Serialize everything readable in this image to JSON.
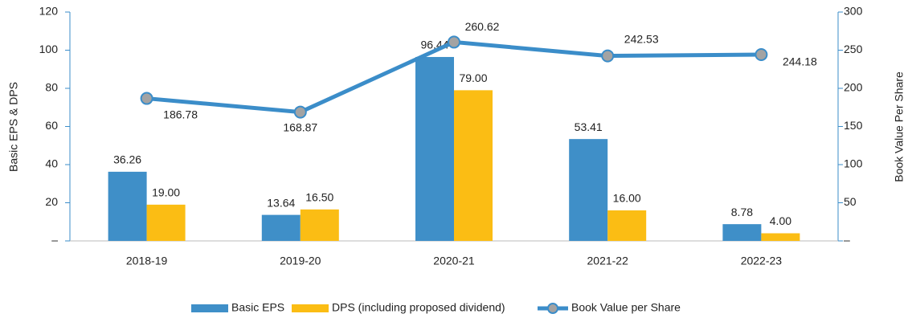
{
  "chart_data": {
    "type": "bar-line",
    "categories": [
      "2018-19",
      "2019-20",
      "2020-21",
      "2021-22",
      "2022-23"
    ],
    "ylabel": "Basic EPS & DPS",
    "y2label": "Book Value Per Share",
    "ylim": [
      0,
      120
    ],
    "yticks": [
      {
        "value": 0,
        "label": "–"
      },
      20,
      40,
      60,
      80,
      100,
      120
    ],
    "y2lim": [
      0,
      300
    ],
    "y2ticks": [
      {
        "value": 0,
        "label": "–"
      },
      50,
      100,
      150,
      200,
      250,
      300
    ],
    "series": [
      {
        "name": "Basic EPS",
        "type": "bar",
        "color": "#3f8fc8",
        "values": [
          36.26,
          13.64,
          96.44,
          53.41,
          8.78
        ],
        "value_labels": [
          "36.26",
          "13.64",
          "96.44",
          "53.41",
          "8.78"
        ]
      },
      {
        "name": "DPS (including proposed dividend)",
        "type": "bar",
        "color": "#fbbd14",
        "values": [
          19,
          16.5,
          79,
          16,
          4
        ],
        "value_labels": [
          "19.00",
          "16.50",
          "79.00",
          "16.00",
          "4.00"
        ]
      },
      {
        "name": "Book Value per Share",
        "type": "line",
        "axis": "y2",
        "color": "#3b8dc9",
        "marker_color": "#a3a3a3",
        "values": [
          186.78,
          168.87,
          260.62,
          242.53,
          244.18
        ],
        "value_labels": [
          "186.78",
          "168.87",
          "260.62",
          "242.53",
          "244.18"
        ]
      }
    ]
  }
}
